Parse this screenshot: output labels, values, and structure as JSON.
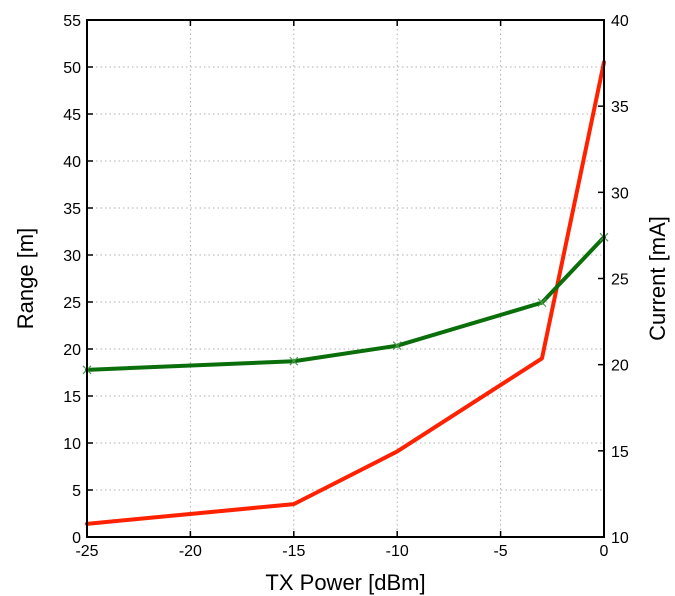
{
  "chart_data": {
    "type": "line",
    "title": "",
    "xlabel": "TX Power [dBm]",
    "ylabel": "Range [m]",
    "y2label": "Current [mA]",
    "xlim": [
      -25,
      0
    ],
    "ylim": [
      0,
      55
    ],
    "y2lim": [
      10,
      40
    ],
    "x_ticks": [
      -25,
      -20,
      -15,
      -10,
      -5,
      0
    ],
    "y_ticks": [
      0,
      5,
      10,
      15,
      20,
      25,
      30,
      35,
      40,
      45,
      50,
      55
    ],
    "y2_ticks": [
      10,
      15,
      20,
      25,
      30,
      35,
      40
    ],
    "grid": true,
    "series": [
      {
        "axis": "left",
        "color": "#ff2200",
        "marker": "none",
        "x": [
          -25,
          -15,
          -10,
          -3,
          0
        ],
        "values": [
          1.4,
          3.5,
          9.1,
          19.0,
          50.5
        ]
      },
      {
        "axis": "right",
        "color": "#0a6e0a",
        "marker": "x",
        "x": [
          -25,
          -15,
          -10,
          -3,
          0
        ],
        "values": [
          19.7,
          20.2,
          21.1,
          23.6,
          27.4
        ]
      }
    ]
  }
}
